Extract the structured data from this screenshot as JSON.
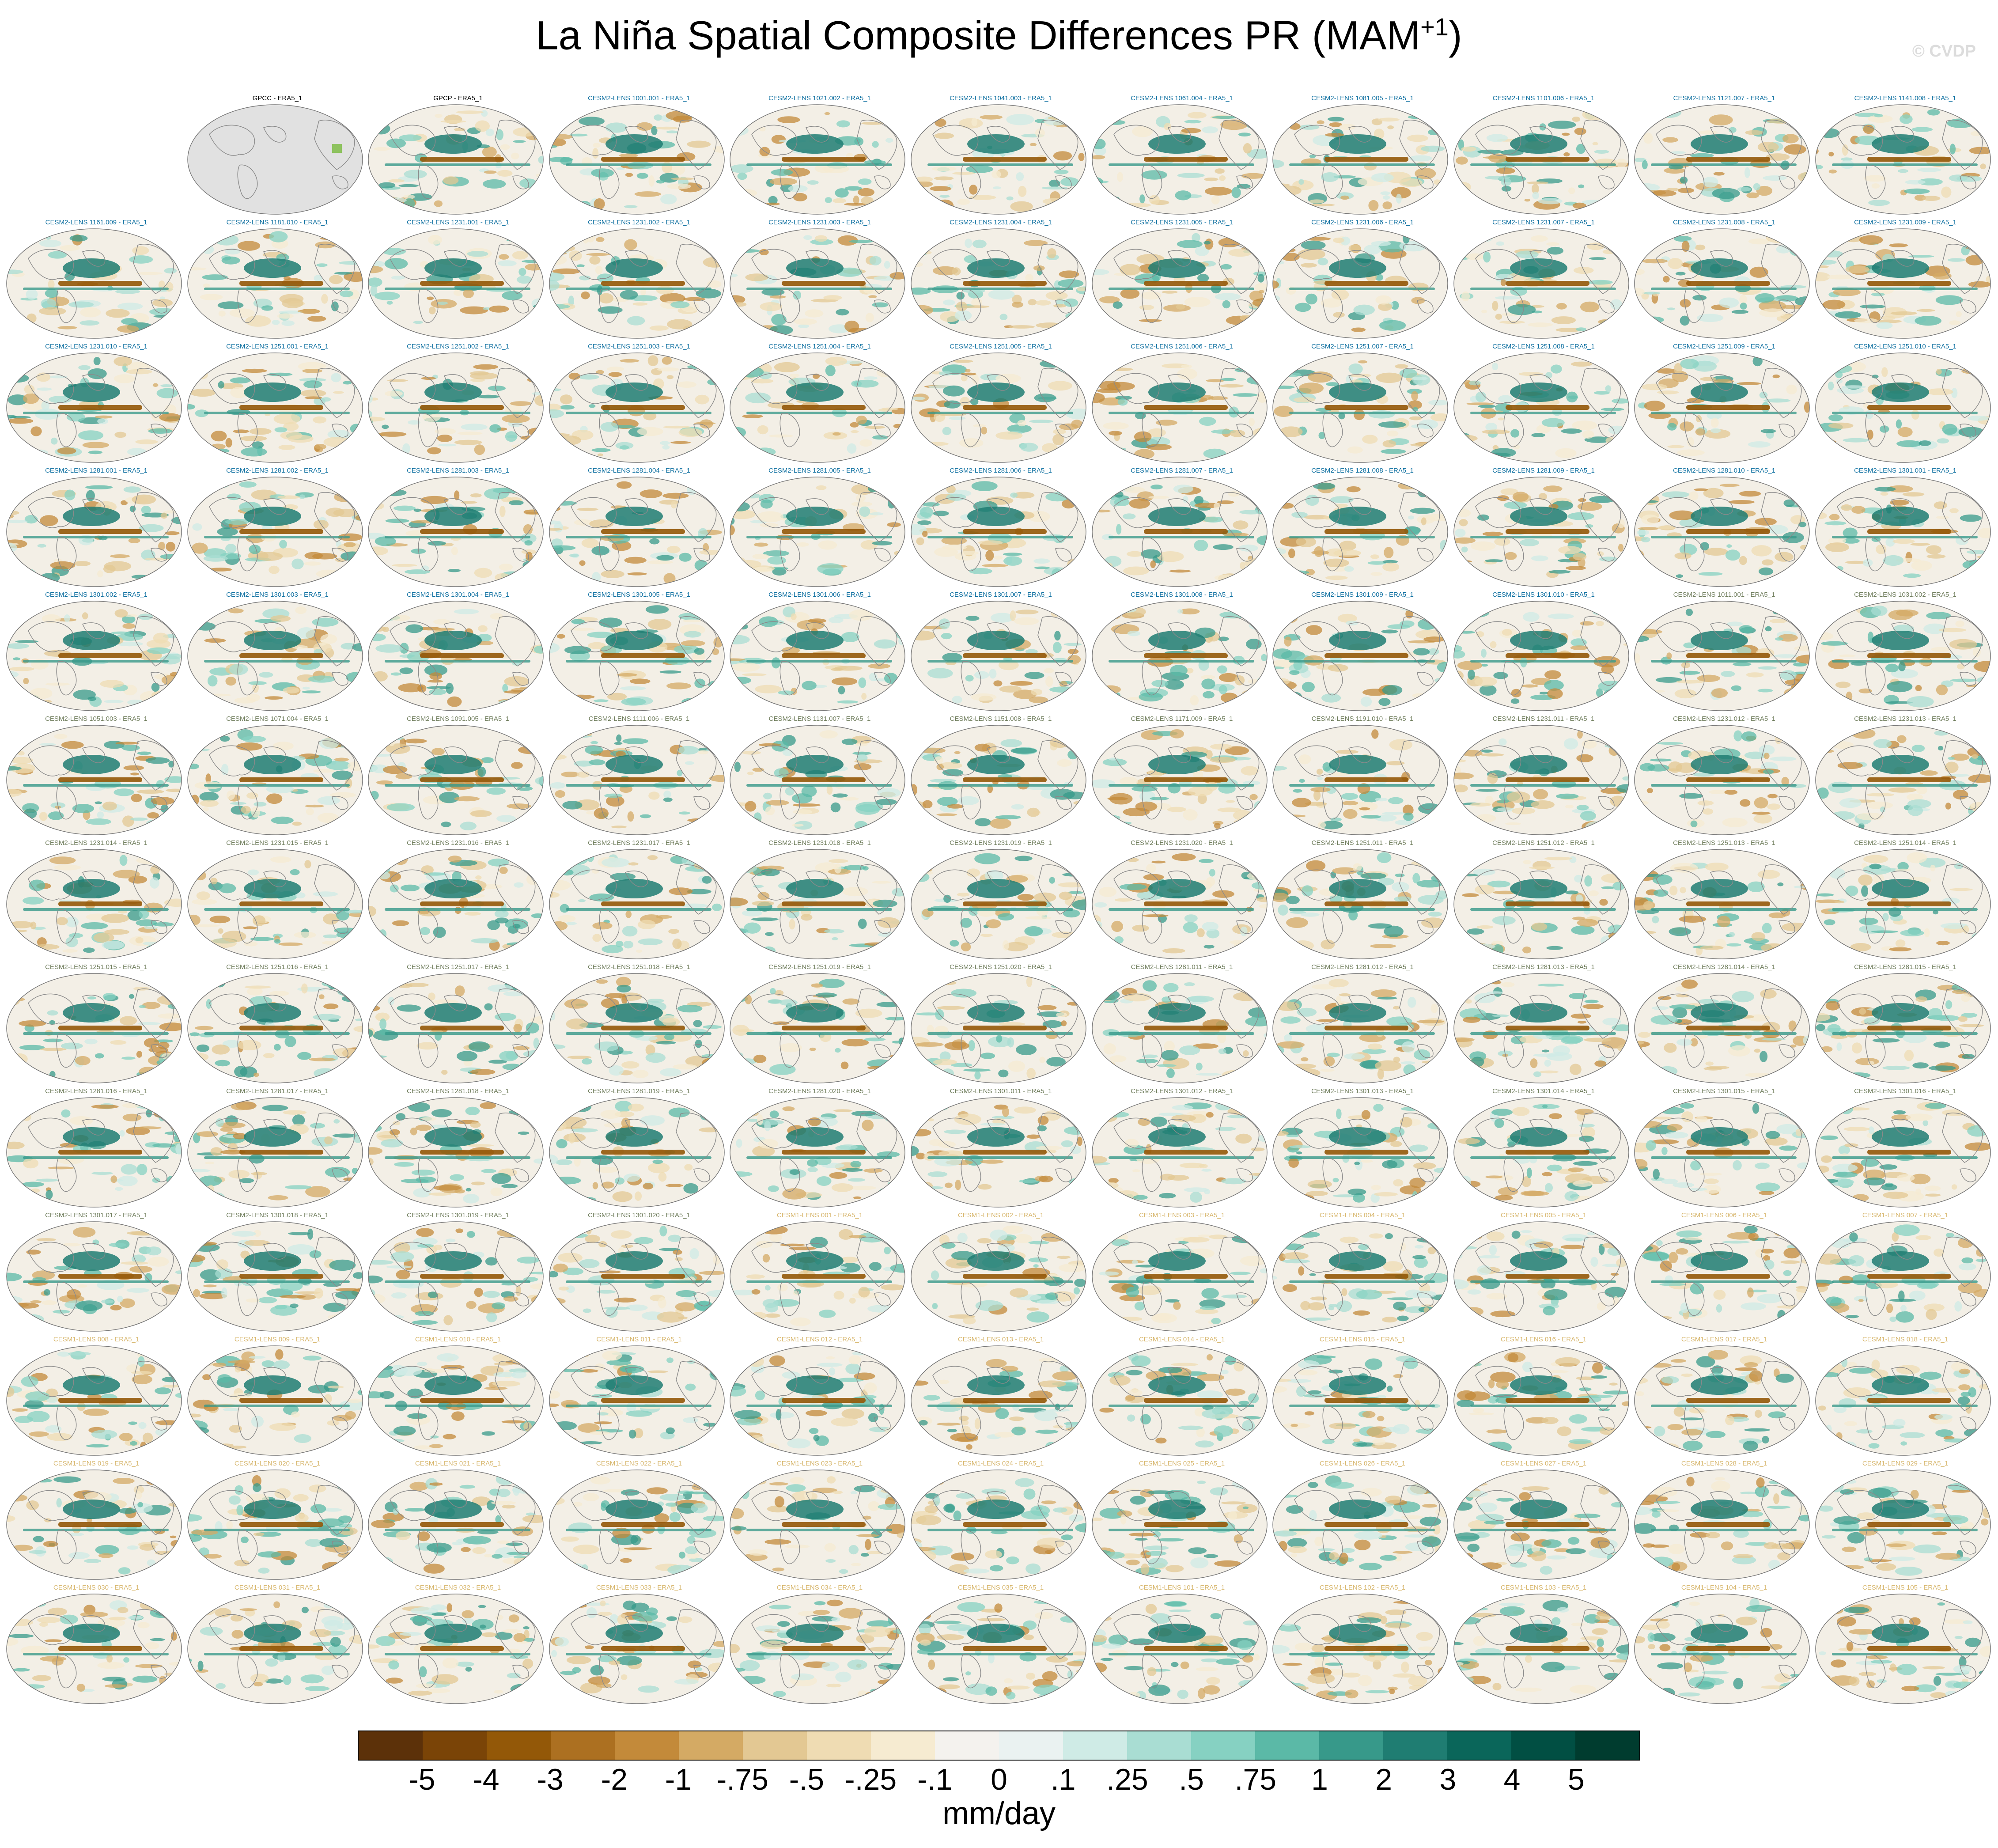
{
  "title": {
    "main": "La Niña Spatial Composite Differences PR (MAM",
    "superscript": "+1",
    "close": ")"
  },
  "watermark": "© CVDP",
  "legend": {
    "units": "mm/day",
    "tick_labels": [
      "-5",
      "-4",
      "-3",
      "-2",
      "-1",
      "-.75",
      "-.5",
      "-.25",
      "-.1",
      "0",
      ".1",
      ".25",
      ".5",
      ".75",
      "1",
      "2",
      "3",
      "4",
      "5"
    ],
    "colors": [
      "#5c3109",
      "#7a4407",
      "#935808",
      "#ac7021",
      "#c38a3a",
      "#d4aa64",
      "#e3c893",
      "#efdcb3",
      "#f6ebd1",
      "#f4f2ee",
      "#eaf2f1",
      "#cfebe6",
      "#a9ddd3",
      "#86d1c2",
      "#5bb9a7",
      "#37998a",
      "#1f7d72",
      "#0a665a",
      "#014f43",
      "#003c2f"
    ]
  },
  "panel_colors": {
    "observations": "#000000",
    "cesm2": "#0d6fa0",
    "cesm2_late": "#6f7d5c",
    "cesm1": "#d7b66c"
  },
  "panels": [
    {
      "label": "",
      "group": "blank"
    },
    {
      "label": "GPCC - ERA5_1",
      "group": "observations",
      "map": "gray"
    },
    {
      "label": "GPCP - ERA5_1",
      "group": "observations"
    },
    {
      "label": "CESM2-LENS 1001.001 - ERA5_1",
      "group": "cesm2"
    },
    {
      "label": "CESM2-LENS 1021.002 - ERA5_1",
      "group": "cesm2"
    },
    {
      "label": "CESM2-LENS 1041.003 - ERA5_1",
      "group": "cesm2"
    },
    {
      "label": "CESM2-LENS 1061.004 - ERA5_1",
      "group": "cesm2"
    },
    {
      "label": "CESM2-LENS 1081.005 - ERA5_1",
      "group": "cesm2"
    },
    {
      "label": "CESM2-LENS 1101.006 - ERA5_1",
      "group": "cesm2"
    },
    {
      "label": "CESM2-LENS 1121.007 - ERA5_1",
      "group": "cesm2"
    },
    {
      "label": "CESM2-LENS 1141.008 - ERA5_1",
      "group": "cesm2"
    },
    {
      "label": "CESM2-LENS 1161.009 - ERA5_1",
      "group": "cesm2"
    },
    {
      "label": "CESM2-LENS 1181.010 - ERA5_1",
      "group": "cesm2"
    },
    {
      "label": "CESM2-LENS 1231.001 - ERA5_1",
      "group": "cesm2"
    },
    {
      "label": "CESM2-LENS 1231.002 - ERA5_1",
      "group": "cesm2"
    },
    {
      "label": "CESM2-LENS 1231.003 - ERA5_1",
      "group": "cesm2"
    },
    {
      "label": "CESM2-LENS 1231.004 - ERA5_1",
      "group": "cesm2"
    },
    {
      "label": "CESM2-LENS 1231.005 - ERA5_1",
      "group": "cesm2"
    },
    {
      "label": "CESM2-LENS 1231.006 - ERA5_1",
      "group": "cesm2"
    },
    {
      "label": "CESM2-LENS 1231.007 - ERA5_1",
      "group": "cesm2"
    },
    {
      "label": "CESM2-LENS 1231.008 - ERA5_1",
      "group": "cesm2"
    },
    {
      "label": "CESM2-LENS 1231.009 - ERA5_1",
      "group": "cesm2"
    },
    {
      "label": "CESM2-LENS 1231.010 - ERA5_1",
      "group": "cesm2"
    },
    {
      "label": "CESM2-LENS 1251.001 - ERA5_1",
      "group": "cesm2"
    },
    {
      "label": "CESM2-LENS 1251.002 - ERA5_1",
      "group": "cesm2"
    },
    {
      "label": "CESM2-LENS 1251.003 - ERA5_1",
      "group": "cesm2"
    },
    {
      "label": "CESM2-LENS 1251.004 - ERA5_1",
      "group": "cesm2"
    },
    {
      "label": "CESM2-LENS 1251.005 - ERA5_1",
      "group": "cesm2"
    },
    {
      "label": "CESM2-LENS 1251.006 - ERA5_1",
      "group": "cesm2"
    },
    {
      "label": "CESM2-LENS 1251.007 - ERA5_1",
      "group": "cesm2"
    },
    {
      "label": "CESM2-LENS 1251.008 - ERA5_1",
      "group": "cesm2"
    },
    {
      "label": "CESM2-LENS 1251.009 - ERA5_1",
      "group": "cesm2"
    },
    {
      "label": "CESM2-LENS 1251.010 - ERA5_1",
      "group": "cesm2"
    },
    {
      "label": "CESM2-LENS 1281.001 - ERA5_1",
      "group": "cesm2"
    },
    {
      "label": "CESM2-LENS 1281.002 - ERA5_1",
      "group": "cesm2"
    },
    {
      "label": "CESM2-LENS 1281.003 - ERA5_1",
      "group": "cesm2"
    },
    {
      "label": "CESM2-LENS 1281.004 - ERA5_1",
      "group": "cesm2"
    },
    {
      "label": "CESM2-LENS 1281.005 - ERA5_1",
      "group": "cesm2"
    },
    {
      "label": "CESM2-LENS 1281.006 - ERA5_1",
      "group": "cesm2"
    },
    {
      "label": "CESM2-LENS 1281.007 - ERA5_1",
      "group": "cesm2"
    },
    {
      "label": "CESM2-LENS 1281.008 - ERA5_1",
      "group": "cesm2"
    },
    {
      "label": "CESM2-LENS 1281.009 - ERA5_1",
      "group": "cesm2"
    },
    {
      "label": "CESM2-LENS 1281.010 - ERA5_1",
      "group": "cesm2"
    },
    {
      "label": "CESM2-LENS 1301.001 - ERA5_1",
      "group": "cesm2"
    },
    {
      "label": "CESM2-LENS 1301.002 - ERA5_1",
      "group": "cesm2"
    },
    {
      "label": "CESM2-LENS 1301.003 - ERA5_1",
      "group": "cesm2"
    },
    {
      "label": "CESM2-LENS 1301.004 - ERA5_1",
      "group": "cesm2"
    },
    {
      "label": "CESM2-LENS 1301.005 - ERA5_1",
      "group": "cesm2"
    },
    {
      "label": "CESM2-LENS 1301.006 - ERA5_1",
      "group": "cesm2"
    },
    {
      "label": "CESM2-LENS 1301.007 - ERA5_1",
      "group": "cesm2"
    },
    {
      "label": "CESM2-LENS 1301.008 - ERA5_1",
      "group": "cesm2"
    },
    {
      "label": "CESM2-LENS 1301.009 - ERA5_1",
      "group": "cesm2"
    },
    {
      "label": "CESM2-LENS 1301.010 - ERA5_1",
      "group": "cesm2"
    },
    {
      "label": "CESM2-LENS 1011.001 - ERA5_1",
      "group": "cesm2_late"
    },
    {
      "label": "CESM2-LENS 1031.002 - ERA5_1",
      "group": "cesm2_late"
    },
    {
      "label": "CESM2-LENS 1051.003 - ERA5_1",
      "group": "cesm2_late"
    },
    {
      "label": "CESM2-LENS 1071.004 - ERA5_1",
      "group": "cesm2_late"
    },
    {
      "label": "CESM2-LENS 1091.005 - ERA5_1",
      "group": "cesm2_late"
    },
    {
      "label": "CESM2-LENS 1111.006 - ERA5_1",
      "group": "cesm2_late"
    },
    {
      "label": "CESM2-LENS 1131.007 - ERA5_1",
      "group": "cesm2_late"
    },
    {
      "label": "CESM2-LENS 1151.008 - ERA5_1",
      "group": "cesm2_late"
    },
    {
      "label": "CESM2-LENS 1171.009 - ERA5_1",
      "group": "cesm2_late"
    },
    {
      "label": "CESM2-LENS 1191.010 - ERA5_1",
      "group": "cesm2_late"
    },
    {
      "label": "CESM2-LENS 1231.011 - ERA5_1",
      "group": "cesm2_late"
    },
    {
      "label": "CESM2-LENS 1231.012 - ERA5_1",
      "group": "cesm2_late"
    },
    {
      "label": "CESM2-LENS 1231.013 - ERA5_1",
      "group": "cesm2_late"
    },
    {
      "label": "CESM2-LENS 1231.014 - ERA5_1",
      "group": "cesm2_late"
    },
    {
      "label": "CESM2-LENS 1231.015 - ERA5_1",
      "group": "cesm2_late"
    },
    {
      "label": "CESM2-LENS 1231.016 - ERA5_1",
      "group": "cesm2_late"
    },
    {
      "label": "CESM2-LENS 1231.017 - ERA5_1",
      "group": "cesm2_late"
    },
    {
      "label": "CESM2-LENS 1231.018 - ERA5_1",
      "group": "cesm2_late"
    },
    {
      "label": "CESM2-LENS 1231.019 - ERA5_1",
      "group": "cesm2_late"
    },
    {
      "label": "CESM2-LENS 1231.020 - ERA5_1",
      "group": "cesm2_late"
    },
    {
      "label": "CESM2-LENS 1251.011 - ERA5_1",
      "group": "cesm2_late"
    },
    {
      "label": "CESM2-LENS 1251.012 - ERA5_1",
      "group": "cesm2_late"
    },
    {
      "label": "CESM2-LENS 1251.013 - ERA5_1",
      "group": "cesm2_late"
    },
    {
      "label": "CESM2-LENS 1251.014 - ERA5_1",
      "group": "cesm2_late"
    },
    {
      "label": "CESM2-LENS 1251.015 - ERA5_1",
      "group": "cesm2_late"
    },
    {
      "label": "CESM2-LENS 1251.016 - ERA5_1",
      "group": "cesm2_late"
    },
    {
      "label": "CESM2-LENS 1251.017 - ERA5_1",
      "group": "cesm2_late"
    },
    {
      "label": "CESM2-LENS 1251.018 - ERA5_1",
      "group": "cesm2_late"
    },
    {
      "label": "CESM2-LENS 1251.019 - ERA5_1",
      "group": "cesm2_late"
    },
    {
      "label": "CESM2-LENS 1251.020 - ERA5_1",
      "group": "cesm2_late"
    },
    {
      "label": "CESM2-LENS 1281.011 - ERA5_1",
      "group": "cesm2_late"
    },
    {
      "label": "CESM2-LENS 1281.012 - ERA5_1",
      "group": "cesm2_late"
    },
    {
      "label": "CESM2-LENS 1281.013 - ERA5_1",
      "group": "cesm2_late"
    },
    {
      "label": "CESM2-LENS 1281.014 - ERA5_1",
      "group": "cesm2_late"
    },
    {
      "label": "CESM2-LENS 1281.015 - ERA5_1",
      "group": "cesm2_late"
    },
    {
      "label": "CESM2-LENS 1281.016 - ERA5_1",
      "group": "cesm2_late"
    },
    {
      "label": "CESM2-LENS 1281.017 - ERA5_1",
      "group": "cesm2_late"
    },
    {
      "label": "CESM2-LENS 1281.018 - ERA5_1",
      "group": "cesm2_late"
    },
    {
      "label": "CESM2-LENS 1281.019 - ERA5_1",
      "group": "cesm2_late"
    },
    {
      "label": "CESM2-LENS 1281.020 - ERA5_1",
      "group": "cesm2_late"
    },
    {
      "label": "CESM2-LENS 1301.011 - ERA5_1",
      "group": "cesm2_late"
    },
    {
      "label": "CESM2-LENS 1301.012 - ERA5_1",
      "group": "cesm2_late"
    },
    {
      "label": "CESM2-LENS 1301.013 - ERA5_1",
      "group": "cesm2_late"
    },
    {
      "label": "CESM2-LENS 1301.014 - ERA5_1",
      "group": "cesm2_late"
    },
    {
      "label": "CESM2-LENS 1301.015 - ERA5_1",
      "group": "cesm2_late"
    },
    {
      "label": "CESM2-LENS 1301.016 - ERA5_1",
      "group": "cesm2_late"
    },
    {
      "label": "CESM2-LENS 1301.017 - ERA5_1",
      "group": "cesm2_late"
    },
    {
      "label": "CESM2-LENS 1301.018 - ERA5_1",
      "group": "cesm2_late"
    },
    {
      "label": "CESM2-LENS 1301.019 - ERA5_1",
      "group": "cesm2_late"
    },
    {
      "label": "CESM2-LENS 1301.020 - ERA5_1",
      "group": "cesm2_late"
    },
    {
      "label": "CESM1-LENS 001 - ERA5_1",
      "group": "cesm1"
    },
    {
      "label": "CESM1-LENS 002 - ERA5_1",
      "group": "cesm1"
    },
    {
      "label": "CESM1-LENS 003 - ERA5_1",
      "group": "cesm1"
    },
    {
      "label": "CESM1-LENS 004 - ERA5_1",
      "group": "cesm1"
    },
    {
      "label": "CESM1-LENS 005 - ERA5_1",
      "group": "cesm1"
    },
    {
      "label": "CESM1-LENS 006 - ERA5_1",
      "group": "cesm1"
    },
    {
      "label": "CESM1-LENS 007 - ERA5_1",
      "group": "cesm1"
    },
    {
      "label": "CESM1-LENS 008 - ERA5_1",
      "group": "cesm1"
    },
    {
      "label": "CESM1-LENS 009 - ERA5_1",
      "group": "cesm1"
    },
    {
      "label": "CESM1-LENS 010 - ERA5_1",
      "group": "cesm1"
    },
    {
      "label": "CESM1-LENS 011 - ERA5_1",
      "group": "cesm1"
    },
    {
      "label": "CESM1-LENS 012 - ERA5_1",
      "group": "cesm1"
    },
    {
      "label": "CESM1-LENS 013 - ERA5_1",
      "group": "cesm1"
    },
    {
      "label": "CESM1-LENS 014 - ERA5_1",
      "group": "cesm1"
    },
    {
      "label": "CESM1-LENS 015 - ERA5_1",
      "group": "cesm1"
    },
    {
      "label": "CESM1-LENS 016 - ERA5_1",
      "group": "cesm1"
    },
    {
      "label": "CESM1-LENS 017 - ERA5_1",
      "group": "cesm1"
    },
    {
      "label": "CESM1-LENS 018 - ERA5_1",
      "group": "cesm1"
    },
    {
      "label": "CESM1-LENS 019 - ERA5_1",
      "group": "cesm1"
    },
    {
      "label": "CESM1-LENS 020 - ERA5_1",
      "group": "cesm1"
    },
    {
      "label": "CESM1-LENS 021 - ERA5_1",
      "group": "cesm1"
    },
    {
      "label": "CESM1-LENS 022 - ERA5_1",
      "group": "cesm1"
    },
    {
      "label": "CESM1-LENS 023 - ERA5_1",
      "group": "cesm1"
    },
    {
      "label": "CESM1-LENS 024 - ERA5_1",
      "group": "cesm1"
    },
    {
      "label": "CESM1-LENS 025 - ERA5_1",
      "group": "cesm1"
    },
    {
      "label": "CESM1-LENS 026 - ERA5_1",
      "group": "cesm1"
    },
    {
      "label": "CESM1-LENS 027 - ERA5_1",
      "group": "cesm1"
    },
    {
      "label": "CESM1-LENS 028 - ERA5_1",
      "group": "cesm1"
    },
    {
      "label": "CESM1-LENS 029 - ERA5_1",
      "group": "cesm1"
    },
    {
      "label": "CESM1-LENS 030 - ERA5_1",
      "group": "cesm1"
    },
    {
      "label": "CESM1-LENS 031 - ERA5_1",
      "group": "cesm1"
    },
    {
      "label": "CESM1-LENS 032 - ERA5_1",
      "group": "cesm1"
    },
    {
      "label": "CESM1-LENS 033 - ERA5_1",
      "group": "cesm1"
    },
    {
      "label": "CESM1-LENS 034 - ERA5_1",
      "group": "cesm1"
    },
    {
      "label": "CESM1-LENS 035 - ERA5_1",
      "group": "cesm1"
    },
    {
      "label": "CESM1-LENS 101 - ERA5_1",
      "group": "cesm1"
    },
    {
      "label": "CESM1-LENS 102 - ERA5_1",
      "group": "cesm1"
    },
    {
      "label": "CESM1-LENS 103 - ERA5_1",
      "group": "cesm1"
    },
    {
      "label": "CESM1-LENS 104 - ERA5_1",
      "group": "cesm1"
    },
    {
      "label": "CESM1-LENS 105 - ERA5_1",
      "group": "cesm1"
    }
  ]
}
